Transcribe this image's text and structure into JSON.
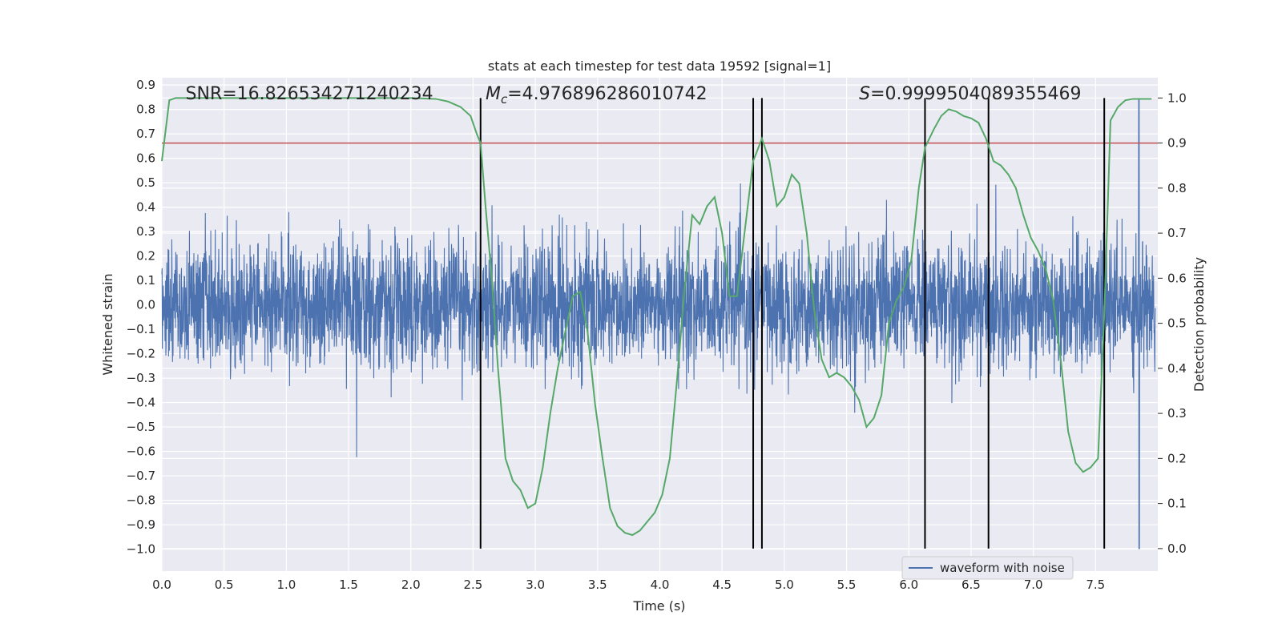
{
  "chart_data": {
    "type": "line",
    "title": "stats at each timestep for test data 19592 [signal=1]",
    "xlabel": "Time (s)",
    "ylabel_left": "Whitened strain",
    "ylabel_right": "Detection probability",
    "xlim": [
      0.0,
      8.0
    ],
    "ylim_left": [
      -1.09,
      0.93
    ],
    "ylim_right": [
      -0.05,
      1.045
    ],
    "grid": true,
    "x_ticks": [
      "0.0",
      "0.5",
      "1.0",
      "1.5",
      "2.0",
      "2.5",
      "3.0",
      "3.5",
      "4.0",
      "4.5",
      "5.0",
      "5.5",
      "6.0",
      "6.5",
      "7.0",
      "7.5"
    ],
    "y_left_ticks": [
      "0.9",
      "0.8",
      "0.7",
      "0.6",
      "0.5",
      "0.4",
      "0.3",
      "0.2",
      "0.1",
      "0.0",
      "−0.1",
      "−0.2",
      "−0.3",
      "−0.4",
      "−0.5",
      "−0.6",
      "−0.7",
      "−0.8",
      "−0.9",
      "−1.0"
    ],
    "y_right_ticks": [
      "1.0",
      "0.9",
      "0.8",
      "0.7",
      "0.6",
      "0.5",
      "0.4",
      "0.3",
      "0.2",
      "0.1",
      "0.0"
    ],
    "annotations": [
      {
        "text": "SNR=16.826534271240234",
        "x": 0.19
      },
      {
        "text_italic": "M",
        "sub": "c",
        "text": "=4.976896286010742",
        "x": 2.6
      },
      {
        "text_italic": "S",
        "text": "=0.9999504089355469",
        "x": 5.6
      }
    ],
    "legend": {
      "label": "waveform with noise",
      "position": "lower-right"
    },
    "threshold": {
      "value": 0.9,
      "color": "#c44e52"
    },
    "vertical_lines": [
      2.56,
      4.75,
      4.82,
      6.13,
      6.64,
      7.57
    ],
    "series": [
      {
        "name": "waveform with noise",
        "axis": "left",
        "color": "#4c72b0",
        "noise_std": 0.13,
        "glitch_x": 7.85,
        "glitch_range": [
          -1.0,
          0.84
        ]
      },
      {
        "axis": "right",
        "color": "#55a868",
        "x": [
          0.0,
          0.06,
          0.11,
          0.2,
          0.5,
          1.0,
          1.5,
          2.0,
          2.2,
          2.3,
          2.4,
          2.48,
          2.53,
          2.56,
          2.6,
          2.65,
          2.7,
          2.76,
          2.82,
          2.88,
          2.94,
          3.0,
          3.06,
          3.12,
          3.18,
          3.24,
          3.3,
          3.36,
          3.42,
          3.48,
          3.54,
          3.6,
          3.66,
          3.72,
          3.78,
          3.84,
          3.9,
          3.96,
          4.02,
          4.08,
          4.14,
          4.2,
          4.26,
          4.32,
          4.38,
          4.44,
          4.5,
          4.56,
          4.62,
          4.68,
          4.75,
          4.82,
          4.88,
          4.94,
          5.0,
          5.06,
          5.12,
          5.18,
          5.24,
          5.3,
          5.36,
          5.42,
          5.48,
          5.54,
          5.6,
          5.66,
          5.72,
          5.78,
          5.84,
          5.9,
          5.96,
          6.02,
          6.08,
          6.13,
          6.2,
          6.26,
          6.32,
          6.38,
          6.44,
          6.5,
          6.56,
          6.62,
          6.68,
          6.74,
          6.8,
          6.86,
          6.92,
          6.98,
          7.04,
          7.1,
          7.16,
          7.22,
          7.28,
          7.34,
          7.4,
          7.46,
          7.52,
          7.57,
          7.62,
          7.68,
          7.74,
          7.8,
          7.86,
          7.95
        ],
        "y": [
          0.86,
          0.995,
          1.0,
          1.0,
          1.0,
          1.0,
          1.0,
          1.0,
          0.998,
          0.992,
          0.98,
          0.96,
          0.92,
          0.9,
          0.76,
          0.6,
          0.4,
          0.2,
          0.15,
          0.13,
          0.09,
          0.1,
          0.18,
          0.3,
          0.4,
          0.48,
          0.56,
          0.57,
          0.48,
          0.32,
          0.2,
          0.09,
          0.05,
          0.035,
          0.03,
          0.04,
          0.06,
          0.08,
          0.12,
          0.2,
          0.38,
          0.58,
          0.74,
          0.72,
          0.76,
          0.78,
          0.7,
          0.56,
          0.56,
          0.7,
          0.86,
          0.91,
          0.86,
          0.76,
          0.78,
          0.83,
          0.81,
          0.7,
          0.53,
          0.42,
          0.38,
          0.39,
          0.38,
          0.36,
          0.33,
          0.27,
          0.29,
          0.34,
          0.5,
          0.55,
          0.58,
          0.64,
          0.8,
          0.89,
          0.93,
          0.96,
          0.975,
          0.97,
          0.96,
          0.955,
          0.945,
          0.91,
          0.86,
          0.85,
          0.83,
          0.8,
          0.74,
          0.69,
          0.66,
          0.62,
          0.55,
          0.42,
          0.26,
          0.19,
          0.17,
          0.18,
          0.2,
          0.52,
          0.95,
          0.98,
          0.995,
          0.998,
          0.998,
          0.998
        ]
      }
    ]
  }
}
